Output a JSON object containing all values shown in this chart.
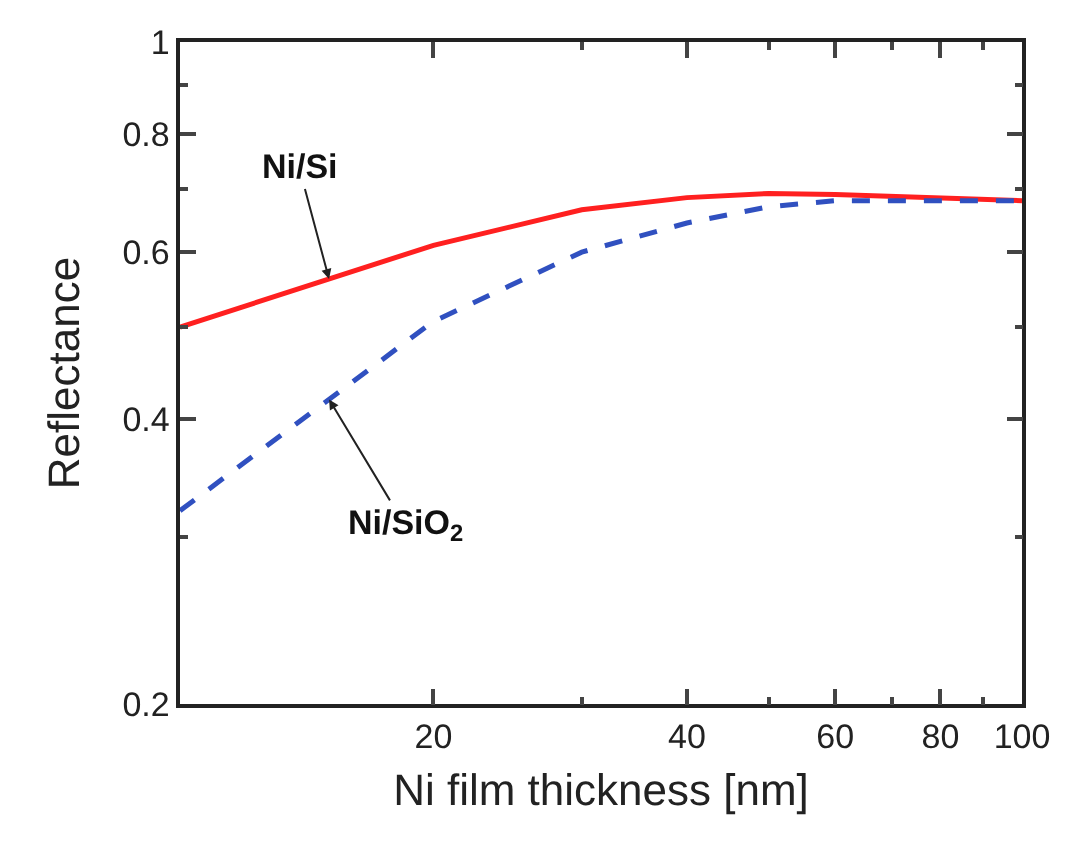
{
  "chart_data": {
    "type": "line",
    "xlabel": "Ni film thickness [nm]",
    "ylabel": "Reflectance",
    "log": "xy",
    "legend": false,
    "marker": "none",
    "x": [
      10,
      20,
      30,
      40,
      50,
      60,
      100
    ],
    "series": [
      {
        "name": "Ni/Si",
        "color": "#ff2020",
        "line_style": "solid",
        "values": [
          0.5,
          0.61,
          0.665,
          0.685,
          0.692,
          0.69,
          0.68
        ]
      },
      {
        "name": "Ni/SiO$_{2}$",
        "color": "#3050c0",
        "line_style": "dashed",
        "values": [
          0.32,
          0.507,
          0.6,
          0.644,
          0.67,
          0.68,
          0.68
        ]
      }
    ],
    "xlim": [
      10,
      100
    ],
    "ylim": [
      0.2,
      1
    ],
    "xticks": [
      {
        "value": 20,
        "label": "20"
      },
      {
        "value": 30,
        "label": null
      },
      {
        "value": 40,
        "label": "40"
      },
      {
        "value": 50,
        "label": null
      },
      {
        "value": 60,
        "label": "60"
      },
      {
        "value": 70,
        "label": null
      },
      {
        "value": 80,
        "label": "80"
      },
      {
        "value": 90,
        "label": null
      },
      {
        "value": 100,
        "label": "100"
      }
    ],
    "yticks": [
      {
        "value": 0.2,
        "label": "0.2"
      },
      {
        "value": 0.3,
        "label": null
      },
      {
        "value": 0.4,
        "label": "0.4"
      },
      {
        "value": 0.5,
        "label": null
      },
      {
        "value": 0.6,
        "label": "0.6"
      },
      {
        "value": 0.7,
        "label": null
      },
      {
        "value": 0.8,
        "label": "0.8"
      },
      {
        "value": 0.9,
        "label": null
      },
      {
        "value": 1,
        "label": "1"
      }
    ]
  }
}
